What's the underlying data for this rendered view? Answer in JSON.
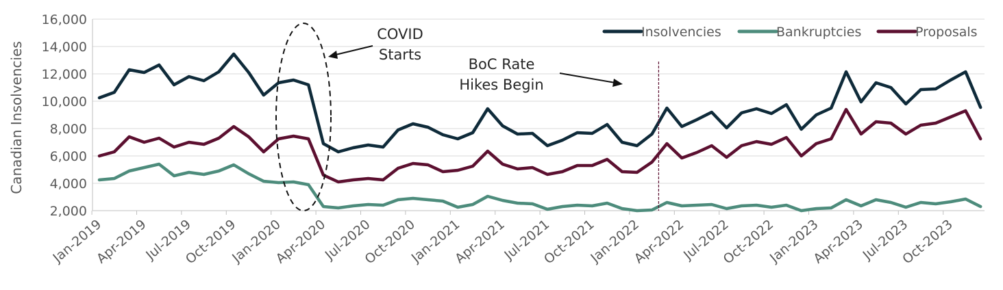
{
  "chart_data": {
    "type": "line",
    "ylabel": "Canadian Insolvencies",
    "ylim": [
      2000,
      16000
    ],
    "yticks": [
      2000,
      4000,
      6000,
      8000,
      10000,
      12000,
      14000,
      16000
    ],
    "ytick_labels": [
      "2,000",
      "4,000",
      "6,000",
      "8,000",
      "10,000",
      "12,000",
      "14,000",
      "16,000"
    ],
    "x_start": "Jan-2019",
    "x_tick_labels": [
      "Jan-2019",
      "Apr-2019",
      "Jul-2019",
      "Oct-2019",
      "Jan-2020",
      "Apr-2020",
      "Jul-2020",
      "Oct-2020",
      "Jan-2021",
      "Apr-2021",
      "Jul-2021",
      "Oct-2021",
      "Jan-2022",
      "Apr-2022",
      "Jul-2022",
      "Oct-2022",
      "Jan-2023",
      "Apr-2023",
      "Jul-2023",
      "Oct-2023"
    ],
    "legend_position": "top-right",
    "series": [
      {
        "name": "Insolvencies",
        "color": "#0f2b3a",
        "values": [
          10250,
          10650,
          12300,
          12100,
          12650,
          11200,
          11800,
          11500,
          12150,
          13450,
          12100,
          10450,
          11350,
          11550,
          11200,
          6900,
          6300,
          6600,
          6800,
          6650,
          7900,
          8350,
          8100,
          7550,
          7250,
          7700,
          9450,
          8200,
          7600,
          7650,
          6750,
          7150,
          7700,
          7650,
          8300,
          7000,
          6750,
          7600,
          9500,
          8150,
          8650,
          9200,
          8050,
          9150,
          9450,
          9100,
          9750,
          7950,
          9000,
          9500,
          12150,
          9950,
          11350,
          11000,
          9800,
          10850,
          10900,
          11550,
          12150,
          9550
        ]
      },
      {
        "name": "Bankruptcies",
        "color": "#4d8c7c",
        "values": [
          4250,
          4350,
          4900,
          5150,
          5400,
          4550,
          4800,
          4650,
          4900,
          5350,
          4700,
          4150,
          4050,
          4100,
          3900,
          2300,
          2200,
          2350,
          2450,
          2400,
          2800,
          2900,
          2800,
          2700,
          2250,
          2450,
          3050,
          2750,
          2550,
          2500,
          2100,
          2300,
          2400,
          2350,
          2550,
          2150,
          2000,
          2050,
          2600,
          2350,
          2400,
          2450,
          2150,
          2350,
          2400,
          2250,
          2400,
          2000,
          2150,
          2200,
          2800,
          2350,
          2800,
          2600,
          2250,
          2600,
          2500,
          2650,
          2850,
          2300
        ]
      },
      {
        "name": "Proposals",
        "color": "#5c1030",
        "values": [
          6000,
          6300,
          7400,
          7000,
          7300,
          6650,
          7000,
          6850,
          7300,
          8150,
          7400,
          6300,
          7250,
          7450,
          7250,
          4600,
          4100,
          4250,
          4350,
          4250,
          5100,
          5450,
          5350,
          4850,
          4950,
          5250,
          6350,
          5400,
          5050,
          5150,
          4650,
          4850,
          5300,
          5300,
          5750,
          4850,
          4800,
          5550,
          6900,
          5850,
          6250,
          6750,
          5900,
          6750,
          7050,
          6850,
          7350,
          6000,
          6900,
          7250,
          9400,
          7600,
          8500,
          8400,
          7600,
          8250,
          8400,
          8850,
          9300,
          7250
        ]
      }
    ],
    "annotations": [
      {
        "lines": [
          "COVID",
          "Starts"
        ]
      },
      {
        "lines": [
          "BoC Rate",
          "Hikes Begin"
        ]
      }
    ],
    "vertical_marker_month_index": 38
  }
}
